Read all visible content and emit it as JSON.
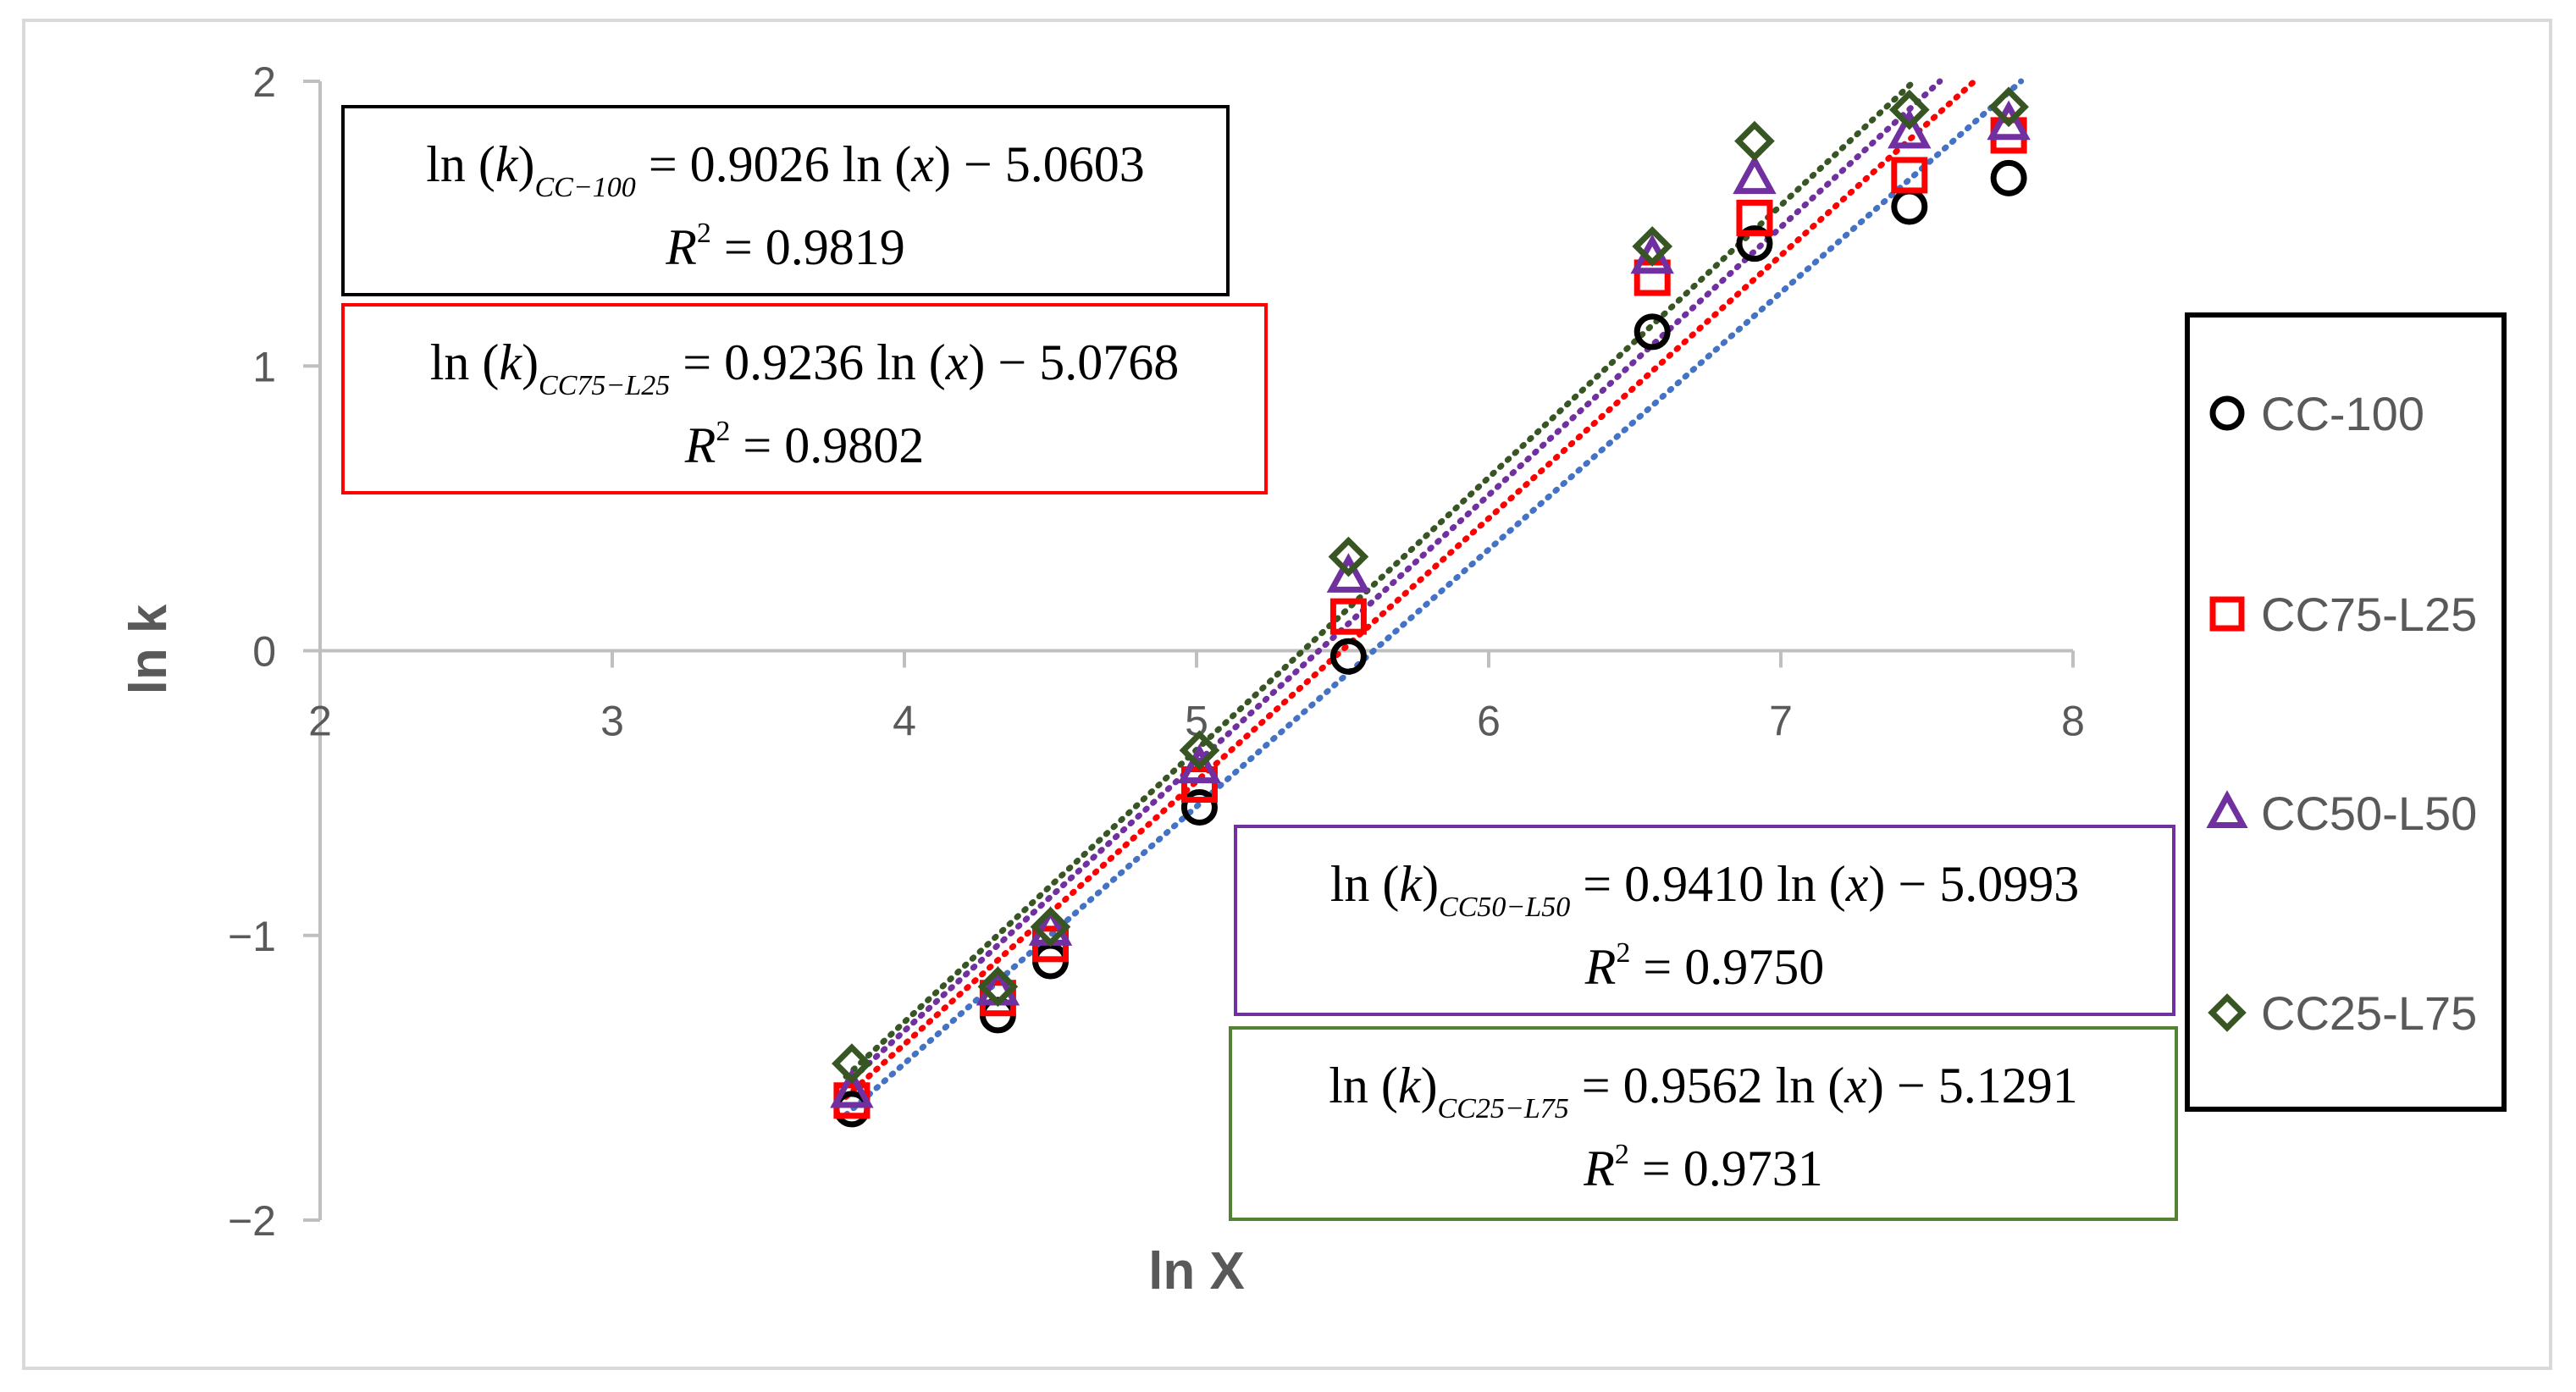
{
  "chart_data": {
    "type": "scatter",
    "xlabel": "ln X",
    "ylabel": "ln k",
    "xlim": [
      2,
      8
    ],
    "ylim": [
      -2,
      2
    ],
    "x_ticks": [
      "2",
      "3",
      "4",
      "5",
      "6",
      "7",
      "8"
    ],
    "y_ticks": [
      "2",
      "1",
      "0",
      "−1",
      "−2"
    ],
    "x_tick_values": [
      2,
      3,
      4,
      5,
      6,
      7,
      8
    ],
    "y_tick_values": [
      2,
      1,
      0,
      -1,
      -2
    ],
    "grid": false,
    "legend_position": "right",
    "x": [
      3.82,
      4.32,
      4.5,
      5.01,
      5.52,
      6.56,
      6.91,
      7.44,
      7.78
    ],
    "series": [
      {
        "name": "CC-100",
        "marker": "circle",
        "color": "#000000",
        "trendline_color": "#4472c4",
        "values": [
          -1.61,
          -1.28,
          -1.09,
          -0.55,
          -0.02,
          1.12,
          1.43,
          1.56,
          1.66
        ],
        "trend": {
          "slope": 0.9026,
          "intercept": -5.0603
        },
        "equation": {
          "lhs": "ln",
          "arg": "k",
          "sub": "CC−100",
          "rhs": "= 0.9026 ln",
          "xarg": "x",
          "tail": "− 5.0603",
          "r2_label": "R",
          "r2_value": "= 0.9819"
        }
      },
      {
        "name": "CC75-L25",
        "marker": "square",
        "color": "#ff0000",
        "trendline_color": "#ff0000",
        "values": [
          -1.58,
          -1.22,
          -1.03,
          -0.47,
          0.12,
          1.31,
          1.52,
          1.67,
          1.81
        ],
        "trend": {
          "slope": 0.9236,
          "intercept": -5.0768
        },
        "equation": {
          "lhs": "ln",
          "arg": "k",
          "sub": "CC75−L25",
          "rhs": "= 0.9236 ln",
          "xarg": "x",
          "tail": "− 5.0768",
          "r2_label": "R",
          "r2_value": "= 0.9802"
        }
      },
      {
        "name": "CC50-L50",
        "marker": "triangle",
        "color": "#7030a0",
        "trendline_color": "#7030a0",
        "values": [
          -1.55,
          -1.19,
          -0.98,
          -0.41,
          0.26,
          1.38,
          1.66,
          1.82,
          1.85
        ],
        "trend": {
          "slope": 0.941,
          "intercept": -5.0993
        },
        "equation": {
          "lhs": "ln",
          "arg": "k",
          "sub": "CC50−L50",
          "rhs": "= 0.9410 ln",
          "xarg": "x",
          "tail": "− 5.0993",
          "r2_label": "R",
          "r2_value": "= 0.9750"
        }
      },
      {
        "name": "CC25-L75",
        "marker": "diamond",
        "color": "#375623",
        "trendline_color": "#375623",
        "values": [
          -1.45,
          -1.18,
          -0.97,
          -0.35,
          0.33,
          1.42,
          1.79,
          1.9,
          1.91
        ],
        "trend": {
          "slope": 0.9562,
          "intercept": -5.1291
        },
        "equation": {
          "lhs": "ln",
          "arg": "k",
          "sub": "CC25−L75",
          "rhs": "= 0.9562 ln",
          "xarg": "x",
          "tail": "− 5.1291",
          "r2_label": "R",
          "r2_value": "= 0.9731"
        }
      }
    ],
    "annotation_box_colors": [
      "#000000",
      "#ff0000",
      "#7030a0",
      "#548235"
    ]
  }
}
